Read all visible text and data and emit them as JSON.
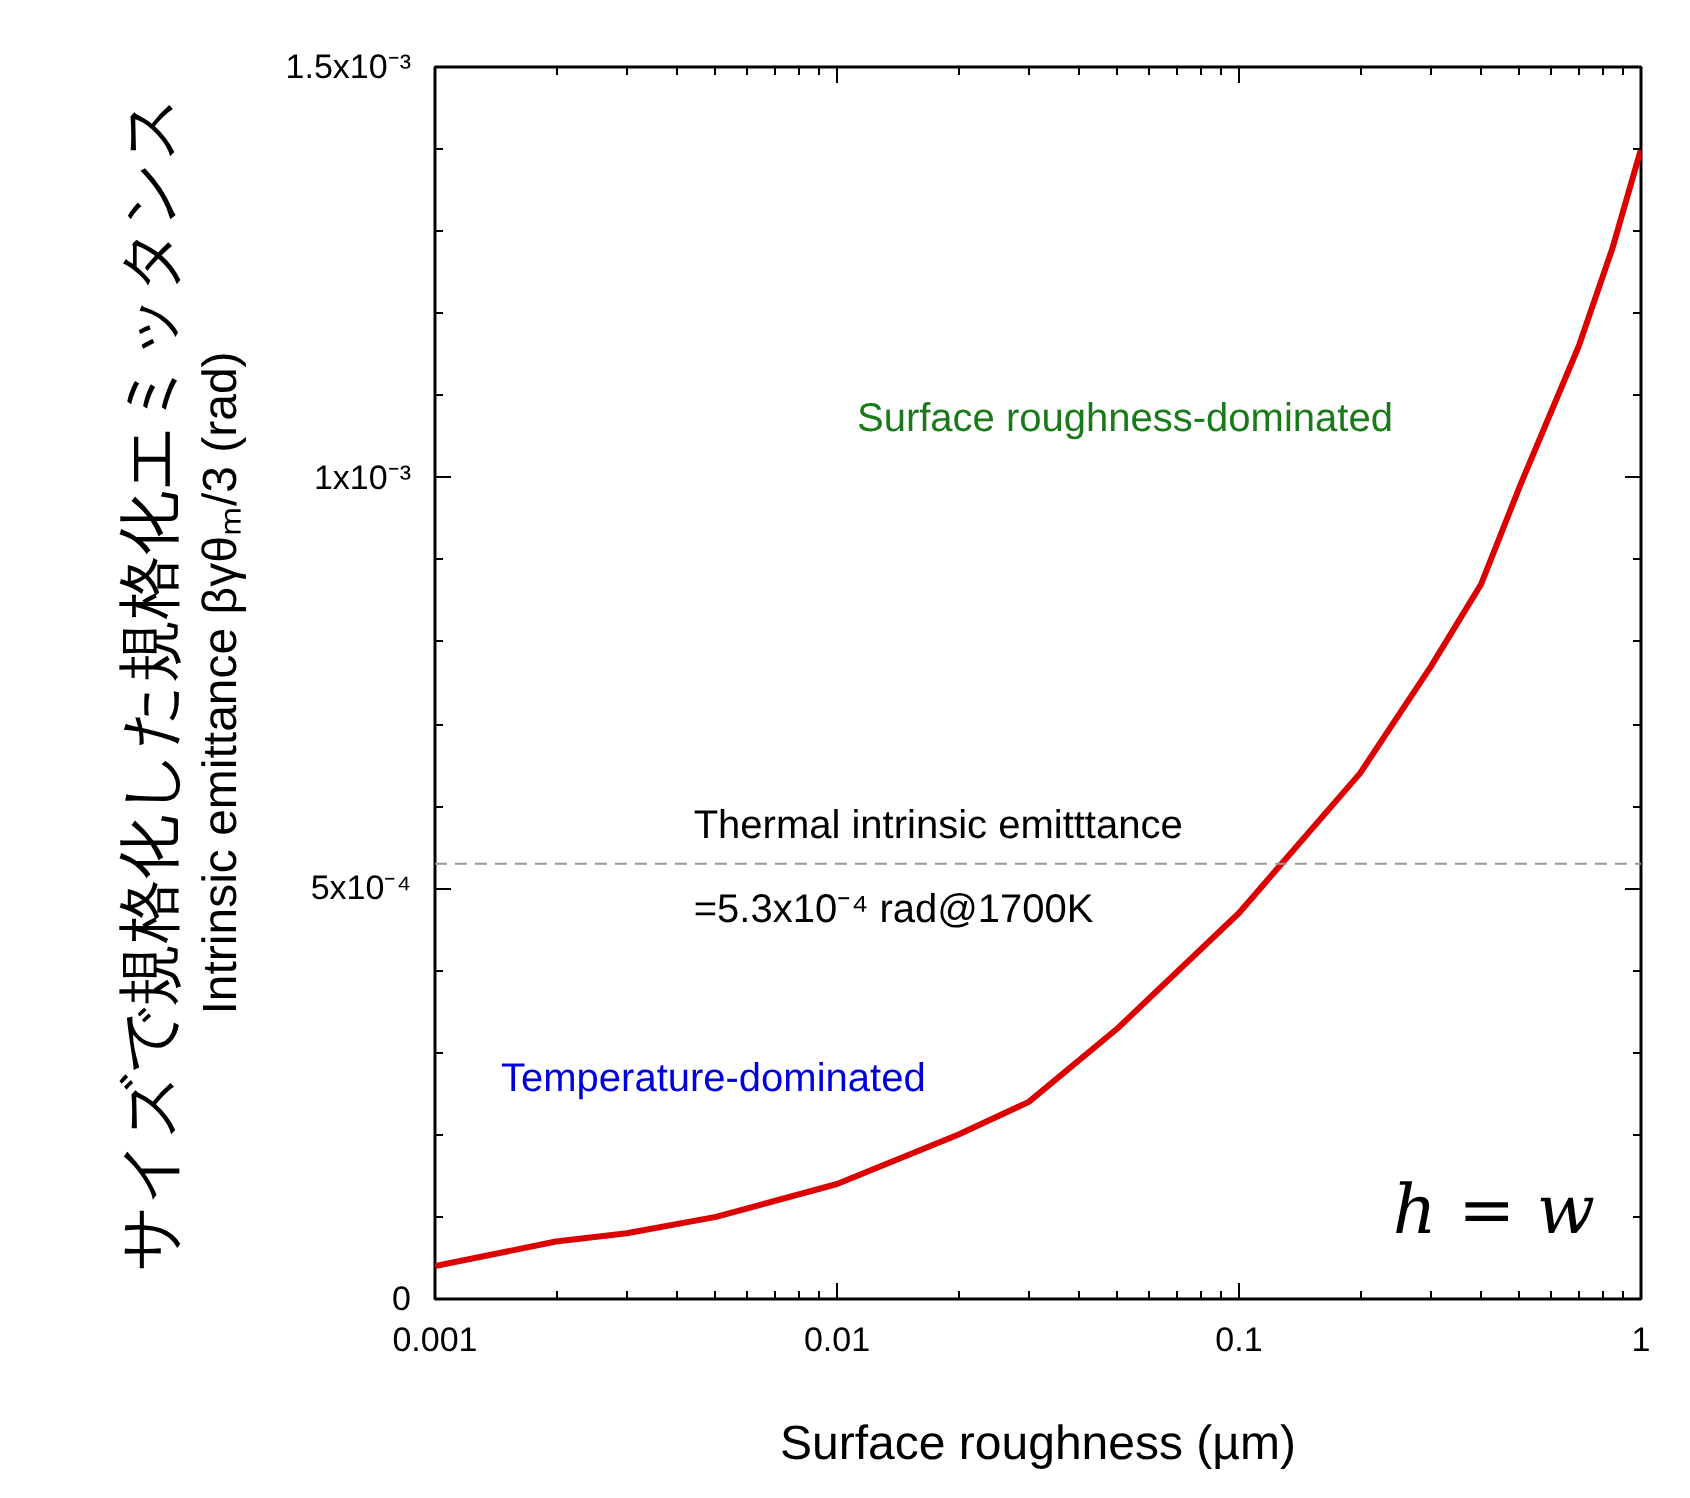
{
  "chart_data": {
    "type": "line",
    "xlabel": "Surface roughness (µm)",
    "ylabel": "Intrinsic emittance βγθₘ/3 (rad)",
    "x": [
      0.001,
      0.002,
      0.003,
      0.005,
      0.01,
      0.02,
      0.03,
      0.05,
      0.1,
      0.2,
      0.3,
      0.4,
      0.5,
      0.7,
      0.85,
      1
    ],
    "series": [
      {
        "color": "#dd0000",
        "values": [
          4e-05,
          7e-05,
          8e-05,
          0.0001,
          0.00014,
          0.0002,
          0.00024,
          0.00033,
          0.00047,
          0.00064,
          0.00077,
          0.00087,
          0.00099,
          0.00116,
          0.00128,
          0.0014
        ]
      }
    ],
    "log": "x",
    "xlim": [
      0.001,
      1
    ],
    "xticks": [
      0.001,
      0.01,
      0.1,
      1
    ],
    "ylim": [
      0,
      0.0015
    ],
    "yticks": [
      0,
      {
        "value": 0.0005,
        "label": "5x10⁻⁴"
      },
      {
        "value": 0.001,
        "label": "1x10⁻³"
      },
      {
        "value": 0.0015,
        "label": "1.5x10⁻³"
      }
    ],
    "ref_lines": [
      {
        "axis": "y",
        "value": 0.00053,
        "color": "#999999",
        "line_style": "dashed"
      }
    ],
    "annotations": [
      "サイズで規格化した規格化エミッタンス",
      "Surface roughness-dominated",
      "Temperature-dominated",
      "h = w",
      "Thermal intrinsic emitttance\n=5.3x10⁻⁴ rad@1700K"
    ],
    "grid": false,
    "marker": "none",
    "line_style": "solid"
  }
}
